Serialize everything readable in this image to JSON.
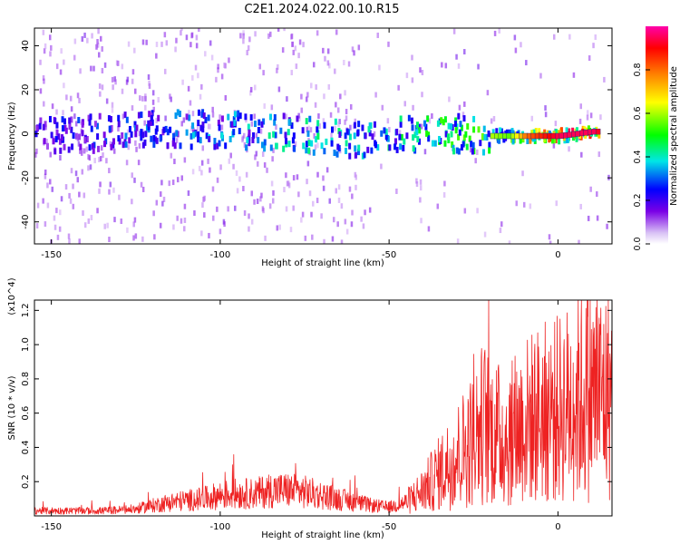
{
  "title": "C2E1.2024.022.00.10.R15",
  "chart_data": [
    {
      "type": "heatmap",
      "title": "C2E1.2024.022.00.10.R15",
      "xlabel": "Height of straight line (km)",
      "ylabel": "Frequency (Hz)",
      "xlim": [
        -155,
        16
      ],
      "ylim": [
        -50,
        48
      ],
      "xticks": [
        -150,
        -100,
        -50,
        0
      ],
      "xtick_labels": [
        "-150",
        "-100",
        "-50",
        "0"
      ],
      "yticks": [
        40,
        20,
        0,
        -20,
        -40
      ],
      "ytick_labels": [
        "40",
        "20",
        "0",
        "-20",
        "-40"
      ],
      "ridge": {
        "x": [
          -155,
          -140,
          -120,
          -100,
          -80,
          -60,
          -45,
          -30,
          -20,
          -15,
          -10,
          0,
          5,
          10,
          14,
          16
        ],
        "freq_hz": [
          0,
          0,
          2,
          2,
          0,
          -3,
          0,
          0,
          -1,
          -1,
          -1,
          -1,
          0,
          1,
          1,
          4
        ],
        "amplitude": [
          0.25,
          0.3,
          0.35,
          0.4,
          0.45,
          0.45,
          0.5,
          0.55,
          0.6,
          0.55,
          0.8,
          0.95,
          0.95,
          0.95,
          0.85,
          0.5
        ]
      },
      "colorbar": {
        "label": "Normalized spectral amplitude",
        "range": [
          0,
          1
        ],
        "ticks": [
          0.0,
          0.2,
          0.4,
          0.6,
          0.8
        ],
        "tick_labels": [
          "0.0",
          "0.2",
          "0.4",
          "0.6",
          "0.8"
        ],
        "colors": [
          "#ffffff",
          "#7a00e6",
          "#0000ff",
          "#00e6e6",
          "#00ff00",
          "#ffff00",
          "#ff8000",
          "#ff0000",
          "#ff00aa"
        ]
      }
    },
    {
      "type": "line",
      "xlabel": "Height of straight line (km)",
      "ylabel": "SNR (10 * v/v)",
      "y_scale_label": "(x10^4)",
      "xlim": [
        -155,
        16
      ],
      "ylim": [
        0,
        1.26
      ],
      "xticks": [
        -150,
        -100,
        -50,
        0
      ],
      "xtick_labels": [
        "-150",
        "-100",
        "-50",
        "0"
      ],
      "yticks": [
        0.2,
        0.4,
        0.6,
        0.8,
        1.0,
        1.2
      ],
      "ytick_labels": [
        "0.2",
        "0.4",
        "0.6",
        "0.8",
        "1.0",
        "1.2"
      ],
      "color": "#ee2222",
      "series": [
        {
          "name": "SNR",
          "x": [
            -155,
            -145,
            -135,
            -125,
            -120,
            -115,
            -110,
            -105,
            -100,
            -95,
            -90,
            -85,
            -80,
            -75,
            -70,
            -65,
            -60,
            -55,
            -50,
            -45,
            -40,
            -35,
            -30,
            -25,
            -22,
            -20,
            -15,
            -10,
            -5,
            0,
            5,
            10,
            16
          ],
          "y": [
            0.03,
            0.03,
            0.03,
            0.04,
            0.06,
            0.08,
            0.09,
            0.1,
            0.12,
            0.13,
            0.13,
            0.15,
            0.15,
            0.14,
            0.12,
            0.1,
            0.08,
            0.06,
            0.05,
            0.08,
            0.15,
            0.25,
            0.35,
            0.45,
            0.55,
            0.5,
            0.45,
            0.55,
            0.6,
            0.62,
            0.68,
            0.72,
            0.7
          ]
        }
      ]
    }
  ]
}
